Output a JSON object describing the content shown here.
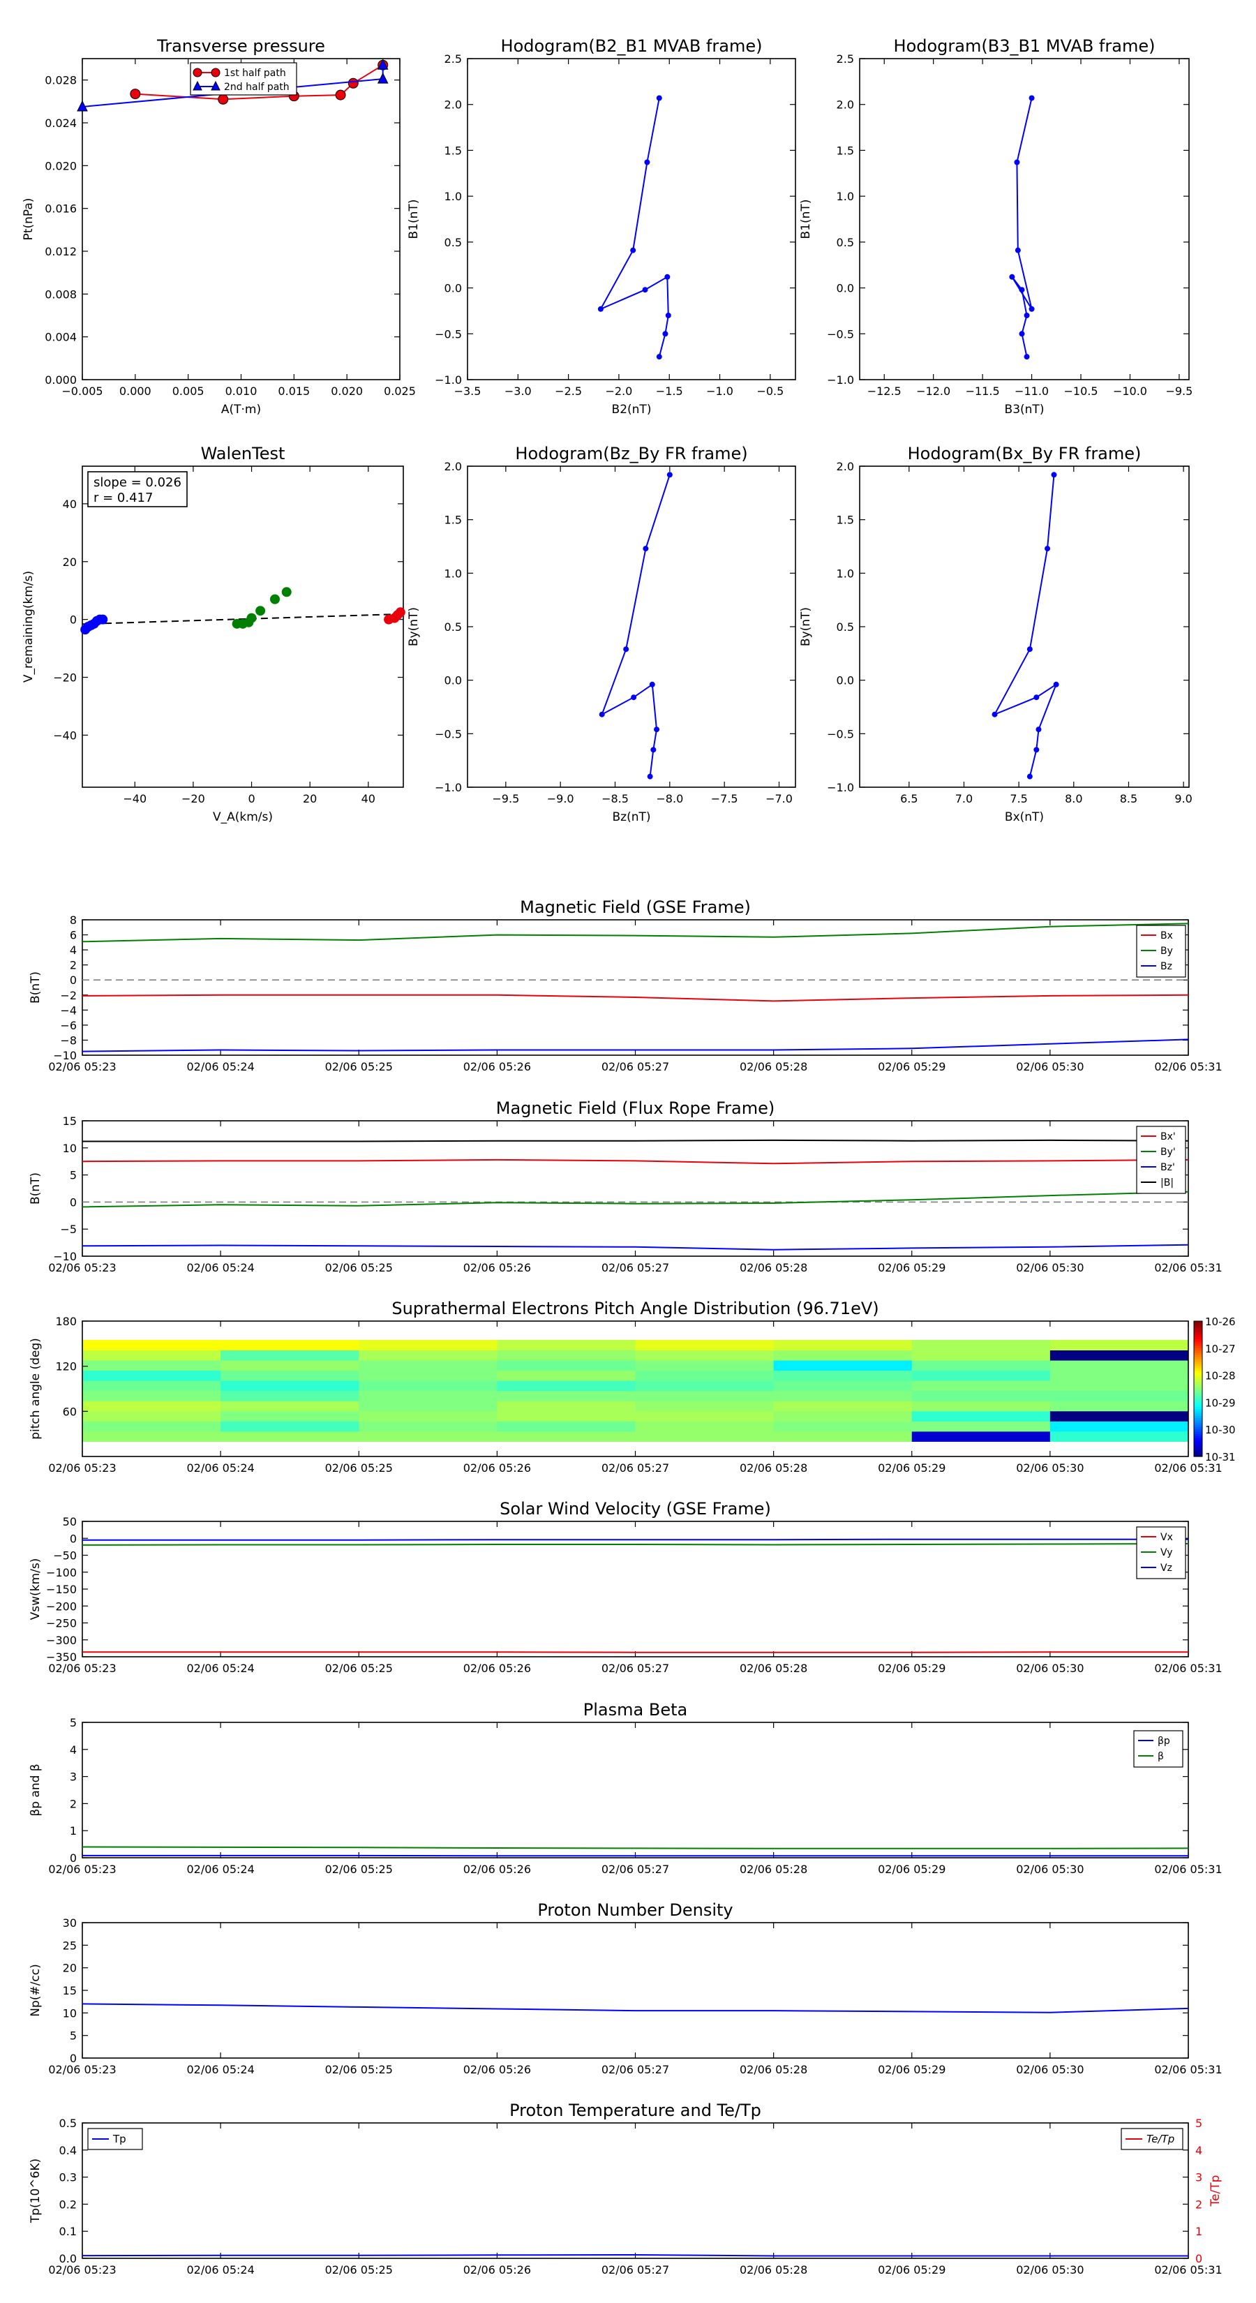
{
  "colors": {
    "red": "#e8000b",
    "green": "#008000",
    "blue": "#0000ff",
    "black": "#000000",
    "gray": "#808080"
  },
  "time_ticks": [
    "02/06 05:23",
    "02/06 05:24",
    "02/06 05:25",
    "02/06 05:26",
    "02/06 05:27",
    "02/06 05:28",
    "02/06 05:29",
    "02/06 05:30",
    "02/06 05:31"
  ],
  "chart_data": [
    {
      "id": "transverse-pressure",
      "type": "line",
      "title": "Transverse pressure",
      "xlabel": "A(T·m)",
      "ylabel": "Pt(nPa)",
      "xlim": [
        -0.005,
        0.025
      ],
      "ylim": [
        0,
        0.03
      ],
      "xticks": [
        -0.005,
        0,
        0.005,
        0.01,
        0.015,
        0.02,
        0.025
      ],
      "xtick_labels": [
        "−0.005",
        "0.000",
        "0.005",
        "0.010",
        "0.015",
        "0.020",
        "0.025"
      ],
      "yticks": [
        0,
        0.004,
        0.008,
        0.012,
        0.016,
        0.02,
        0.024,
        0.028
      ],
      "ytick_labels": [
        "0.000",
        "0.004",
        "0.008",
        "0.012",
        "0.016",
        "0.020",
        "0.024",
        "0.028"
      ],
      "legend": "upper-center",
      "series": [
        {
          "name": "1st half path",
          "color": "#e8000b",
          "marker": "circle",
          "x": [
            0.0,
            0.0083,
            0.015,
            0.0194,
            0.0206,
            0.0234
          ],
          "y": [
            0.0267,
            0.0262,
            0.0265,
            0.0266,
            0.0277,
            0.0294
          ]
        },
        {
          "name": "2nd half path",
          "color": "#0000ff",
          "marker": "triangle",
          "x": [
            -0.005,
            0.0234,
            0.0234
          ],
          "y": [
            0.0255,
            0.0281,
            0.0294
          ]
        }
      ]
    },
    {
      "id": "hodogram-b2-b1",
      "type": "line",
      "title": "Hodogram(B2_B1 MVAB frame)",
      "xlabel": "B2(nT)",
      "ylabel": "B1(nT)",
      "xlim": [
        -3.5,
        -0.25
      ],
      "ylim": [
        -1.0,
        2.5
      ],
      "xticks": [
        -3.5,
        -3.0,
        -2.5,
        -2.0,
        -1.5,
        -1.0,
        -0.5
      ],
      "xtick_labels": [
        "−3.5",
        "−3.0",
        "−2.5",
        "−2.0",
        "−1.5",
        "−1.0",
        "−0.5"
      ],
      "yticks": [
        -1.0,
        -0.5,
        0.0,
        0.5,
        1.0,
        1.5,
        2.0,
        2.5
      ],
      "ytick_labels": [
        "−1.0",
        "−0.5",
        "0.0",
        "0.5",
        "1.0",
        "1.5",
        "2.0",
        "2.5"
      ],
      "series": [
        {
          "color": "#0000ff",
          "x": [
            -1.6,
            -1.72,
            -1.86,
            -2.18,
            -1.74,
            -1.52,
            -1.51,
            -1.54,
            -1.6
          ],
          "y": [
            2.07,
            1.37,
            0.41,
            -0.23,
            -0.02,
            0.12,
            -0.3,
            -0.5,
            -0.75
          ]
        }
      ]
    },
    {
      "id": "hodogram-b3-b1",
      "type": "line",
      "title": "Hodogram(B3_B1 MVAB frame)",
      "xlabel": "B3(nT)",
      "ylabel": "B1(nT)",
      "xlim": [
        -12.75,
        -9.4
      ],
      "ylim": [
        -1.0,
        2.5
      ],
      "xticks": [
        -12.5,
        -12.0,
        -11.5,
        -11.0,
        -10.5,
        -10.0,
        -9.5
      ],
      "xtick_labels": [
        "−12.5",
        "−12.0",
        "−11.5",
        "−11.0",
        "−10.5",
        "−10.0",
        "−9.5"
      ],
      "yticks": [
        -1.0,
        -0.5,
        0.0,
        0.5,
        1.0,
        1.5,
        2.0,
        2.5
      ],
      "ytick_labels": [
        "−1.0",
        "−0.5",
        "0.0",
        "0.5",
        "1.0",
        "1.5",
        "2.0",
        "2.5"
      ],
      "series": [
        {
          "color": "#0000ff",
          "x": [
            -11.0,
            -11.15,
            -11.14,
            -11.0,
            -11.2,
            -11.1,
            -11.05,
            -11.1,
            -11.05
          ],
          "y": [
            2.07,
            1.37,
            0.41,
            -0.23,
            0.12,
            -0.02,
            -0.3,
            -0.5,
            -0.75
          ]
        }
      ]
    },
    {
      "id": "walen-test",
      "type": "scatter",
      "title": "WalenTest",
      "xlabel": "V_A(km/s)",
      "ylabel": "V_remaining(km/s)",
      "xlim": [
        -58,
        52
      ],
      "ylim": [
        -58,
        53
      ],
      "xticks": [
        -40,
        -20,
        0,
        20,
        40
      ],
      "xtick_labels": [
        "−40",
        "−20",
        "0",
        "20",
        "40"
      ],
      "yticks": [
        -40,
        -20,
        0,
        20,
        40
      ],
      "ytick_labels": [
        "−40",
        "−20",
        "0",
        "20",
        "40"
      ],
      "annotations": [
        "slope = 0.026",
        "r = 0.417"
      ],
      "fit_line": {
        "x": [
          -58,
          52
        ],
        "y": [
          -1.6,
          1.9
        ]
      },
      "series": [
        {
          "color": "#0000ff",
          "x": [
            -57,
            -56,
            -55,
            -54,
            -53,
            -52,
            -51
          ],
          "y": [
            -3.5,
            -2.5,
            -2,
            -1.5,
            -0.5,
            0,
            0
          ]
        },
        {
          "color": "#008000",
          "x": [
            -5,
            -3,
            -1,
            0,
            3,
            8,
            12
          ],
          "y": [
            -1.5,
            -1.5,
            -1,
            0.5,
            3,
            7,
            9.5
          ]
        },
        {
          "color": "#e8000b",
          "x": [
            47,
            49,
            50,
            51
          ],
          "y": [
            0,
            0.5,
            1.5,
            2.5
          ]
        }
      ]
    },
    {
      "id": "hodogram-bz-by",
      "type": "line",
      "title": "Hodogram(Bz_By FR frame)",
      "xlabel": "Bz(nT)",
      "ylabel": "By(nT)",
      "xlim": [
        -9.85,
        -6.85
      ],
      "ylim": [
        -1.0,
        2.0
      ],
      "xticks": [
        -9.5,
        -9.0,
        -8.5,
        -8.0,
        -7.5,
        -7.0
      ],
      "xtick_labels": [
        "−9.5",
        "−9.0",
        "−8.5",
        "−8.0",
        "−7.5",
        "−7.0"
      ],
      "yticks": [
        -1.0,
        -0.5,
        0.0,
        0.5,
        1.0,
        1.5,
        2.0
      ],
      "ytick_labels": [
        "−1.0",
        "−0.5",
        "0.0",
        "0.5",
        "1.0",
        "1.5",
        "2.0"
      ],
      "series": [
        {
          "color": "#0000ff",
          "x": [
            -8.0,
            -8.22,
            -8.4,
            -8.62,
            -8.33,
            -8.16,
            -8.12,
            -8.15,
            -8.18
          ],
          "y": [
            1.92,
            1.23,
            0.29,
            -0.32,
            -0.16,
            -0.04,
            -0.46,
            -0.65,
            -0.9
          ]
        }
      ]
    },
    {
      "id": "hodogram-bx-by",
      "type": "line",
      "title": "Hodogram(Bx_By FR frame)",
      "xlabel": "Bx(nT)",
      "ylabel": "By(nT)",
      "xlim": [
        6.05,
        9.05
      ],
      "ylim": [
        -1.0,
        2.0
      ],
      "xticks": [
        6.5,
        7.0,
        7.5,
        8.0,
        8.5,
        9.0
      ],
      "xtick_labels": [
        "6.5",
        "7.0",
        "7.5",
        "8.0",
        "8.5",
        "9.0"
      ],
      "yticks": [
        -1.0,
        -0.5,
        0.0,
        0.5,
        1.0,
        1.5,
        2.0
      ],
      "ytick_labels": [
        "−1.0",
        "−0.5",
        "0.0",
        "0.5",
        "1.0",
        "1.5",
        "2.0"
      ],
      "series": [
        {
          "color": "#0000ff",
          "x": [
            7.82,
            7.76,
            7.6,
            7.28,
            7.66,
            7.84,
            7.68,
            7.66,
            7.6
          ],
          "y": [
            1.92,
            1.23,
            0.29,
            -0.32,
            -0.16,
            -0.04,
            -0.46,
            -0.65,
            -0.9
          ]
        }
      ]
    },
    {
      "id": "mag-gse",
      "type": "line",
      "title": "Magnetic Field (GSE Frame)",
      "ylabel": "B(nT)",
      "x": [
        0,
        1,
        2,
        3,
        4,
        5,
        6,
        7,
        8
      ],
      "xlim": [
        0,
        8
      ],
      "ylim": [
        -10,
        8
      ],
      "yticks": [
        -10,
        -8,
        -6,
        -4,
        -2,
        0,
        2,
        4,
        6,
        8
      ],
      "ytick_labels": [
        "−10",
        "−8",
        "−6",
        "−4",
        "−2",
        "0",
        "2",
        "4",
        "6",
        "8"
      ],
      "zero_line": true,
      "legend": "right",
      "series": [
        {
          "name": "Bx",
          "color": "#e8000b",
          "values": [
            -2.1,
            -2.0,
            -2.0,
            -2.0,
            -2.3,
            -2.8,
            -2.4,
            -2.1,
            -2.0
          ]
        },
        {
          "name": "By",
          "color": "#008000",
          "values": [
            5.1,
            5.5,
            5.3,
            6.0,
            5.9,
            5.7,
            6.2,
            7.1,
            7.5
          ]
        },
        {
          "name": "Bz",
          "color": "#0000ff",
          "values": [
            -9.5,
            -9.3,
            -9.4,
            -9.3,
            -9.3,
            -9.3,
            -9.1,
            -8.5,
            -7.9
          ]
        }
      ]
    },
    {
      "id": "mag-fr",
      "type": "line",
      "title": "Magnetic Field (Flux Rope Frame)",
      "ylabel": "B(nT)",
      "x": [
        0,
        1,
        2,
        3,
        4,
        5,
        6,
        7,
        8
      ],
      "xlim": [
        0,
        8
      ],
      "ylim": [
        -10,
        15
      ],
      "yticks": [
        -10,
        -5,
        0,
        5,
        10,
        15
      ],
      "ytick_labels": [
        "−10",
        "−5",
        "0",
        "5",
        "10",
        "15"
      ],
      "zero_line": true,
      "legend": "right",
      "series": [
        {
          "name": "Bx'",
          "color": "#e8000b",
          "values": [
            7.5,
            7.6,
            7.6,
            7.8,
            7.6,
            7.1,
            7.5,
            7.6,
            7.8
          ]
        },
        {
          "name": "By'",
          "color": "#008000",
          "values": [
            -0.9,
            -0.5,
            -0.7,
            -0.1,
            -0.3,
            -0.2,
            0.4,
            1.2,
            1.9
          ]
        },
        {
          "name": "Bz'",
          "color": "#0000ff",
          "values": [
            -8.1,
            -8.0,
            -8.1,
            -8.2,
            -8.3,
            -8.8,
            -8.5,
            -8.3,
            -7.9
          ]
        },
        {
          "name": "|B|",
          "color": "#000000",
          "values": [
            11.2,
            11.2,
            11.2,
            11.3,
            11.3,
            11.4,
            11.3,
            11.4,
            11.3
          ]
        }
      ]
    },
    {
      "id": "pad",
      "type": "heatmap",
      "title": "Suprathermal Electrons Pitch Angle Distribution (96.71eV)",
      "ylabel": "pitch angle (deg)",
      "xlim": [
        0,
        8
      ],
      "ylim": [
        0,
        180
      ],
      "yticks": [
        60,
        120,
        180
      ],
      "ytick_labels": [
        "60",
        "120",
        "180"
      ],
      "colorbar_labels": [
        "10-26",
        "10-27",
        "10-28",
        "10-29",
        "10-30",
        "10-31"
      ],
      "colorbar_min": -31,
      "colorbar_max": -26,
      "rows": [
        [
          -28.4,
          -28.4,
          -28.4,
          -28.4,
          -28.4,
          -28.4,
          -30.6,
          -28.9
        ],
        [
          -28.5,
          -28.8,
          -28.5,
          -28.6,
          -28.4,
          -28.5,
          -28.5,
          -29.2
        ],
        [
          -28.3,
          -28.5,
          -28.4,
          -28.3,
          -28.3,
          -28.4,
          -28.9,
          -31.0
        ],
        [
          -28.2,
          -28.3,
          -28.5,
          -28.3,
          -28.4,
          -28.3,
          -28.4,
          -28.5
        ],
        [
          -28.5,
          -28.7,
          -28.5,
          -28.5,
          -28.5,
          -28.5,
          -28.6,
          -28.6
        ],
        [
          -28.6,
          -28.9,
          -28.6,
          -28.8,
          -28.7,
          -28.6,
          -28.5,
          -28.5
        ],
        [
          -28.9,
          -28.6,
          -28.5,
          -28.4,
          -28.6,
          -28.7,
          -28.8,
          -28.5
        ],
        [
          -28.5,
          -28.4,
          -28.5,
          -28.6,
          -28.5,
          -29.2,
          -28.6,
          -28.5
        ],
        [
          -28.2,
          -28.7,
          -28.3,
          -28.4,
          -28.3,
          -28.4,
          -28.3,
          -31.0
        ],
        [
          -27.9,
          -27.9,
          -28.0,
          -28.2,
          -28.0,
          -28.1,
          -28.3,
          -28.2
        ]
      ]
    },
    {
      "id": "vsw",
      "type": "line",
      "title": "Solar Wind Velocity (GSE Frame)",
      "ylabel": "Vsw(km/s)",
      "x": [
        0,
        1,
        2,
        3,
        4,
        5,
        6,
        7,
        8
      ],
      "xlim": [
        0,
        8
      ],
      "ylim": [
        -350,
        50
      ],
      "yticks": [
        -350,
        -300,
        -250,
        -200,
        -150,
        -100,
        -50,
        0,
        50
      ],
      "ytick_labels": [
        "−350",
        "−300",
        "−250",
        "−200",
        "−150",
        "−100",
        "−50",
        "0",
        "50"
      ],
      "legend": "right",
      "series": [
        {
          "name": "Vx",
          "color": "#e8000b",
          "values": [
            -336,
            -336,
            -336,
            -336,
            -337,
            -337,
            -337,
            -336,
            -336
          ]
        },
        {
          "name": "Vy",
          "color": "#008000",
          "values": [
            -20,
            -19,
            -19,
            -18,
            -18,
            -19,
            -18,
            -17,
            -16
          ]
        },
        {
          "name": "Vz",
          "color": "#0000ff",
          "values": [
            -5,
            -5,
            -5,
            -4,
            -4,
            -4,
            -3,
            -3,
            -3
          ]
        }
      ]
    },
    {
      "id": "beta",
      "type": "line",
      "title": "Plasma Beta",
      "ylabel": "βp and β",
      "x": [
        0,
        1,
        2,
        3,
        4,
        5,
        6,
        7,
        8
      ],
      "xlim": [
        0,
        8
      ],
      "ylim": [
        0,
        5
      ],
      "yticks": [
        0,
        1,
        2,
        3,
        4,
        5
      ],
      "ytick_labels": [
        "0",
        "1",
        "2",
        "3",
        "4",
        "5"
      ],
      "legend": "upper-right",
      "series": [
        {
          "name": "βp",
          "color": "#0000ff",
          "values": [
            0.08,
            0.08,
            0.08,
            0.07,
            0.07,
            0.07,
            0.07,
            0.07,
            0.07
          ]
        },
        {
          "name": "β",
          "color": "#008000",
          "values": [
            0.4,
            0.39,
            0.38,
            0.36,
            0.35,
            0.34,
            0.34,
            0.34,
            0.35
          ]
        }
      ]
    },
    {
      "id": "np",
      "type": "line",
      "title": "Proton Number Density",
      "ylabel": "Np(#/cc)",
      "x": [
        0,
        1,
        2,
        3,
        4,
        5,
        6,
        7,
        8
      ],
      "xlim": [
        0,
        8
      ],
      "ylim": [
        0,
        30
      ],
      "yticks": [
        0,
        5,
        10,
        15,
        20,
        25,
        30
      ],
      "ytick_labels": [
        "0",
        "5",
        "10",
        "15",
        "20",
        "25",
        "30"
      ],
      "series": [
        {
          "color": "#0000ff",
          "values": [
            12.0,
            11.7,
            11.3,
            10.9,
            10.5,
            10.5,
            10.3,
            10.1,
            11.0
          ]
        }
      ]
    },
    {
      "id": "tp",
      "type": "line",
      "title": "Proton Temperature and Te/Tp",
      "ylabel": "Tp(10^6K)",
      "ylabel_right": "Te/Tp",
      "x": [
        0,
        1,
        2,
        3,
        4,
        5,
        6,
        7,
        8
      ],
      "xlim": [
        0,
        8
      ],
      "ylim": [
        0,
        0.5
      ],
      "ylim_right": [
        0,
        5
      ],
      "yticks": [
        0,
        0.1,
        0.2,
        0.3,
        0.4,
        0.5
      ],
      "ytick_labels": [
        "0.0",
        "0.1",
        "0.2",
        "0.3",
        "0.4",
        "0.5"
      ],
      "yticks_right": [
        0,
        1,
        2,
        3,
        4,
        5
      ],
      "ytick_labels_right": [
        "0",
        "1",
        "2",
        "3",
        "4",
        "5"
      ],
      "series": [
        {
          "name": "Tp",
          "color": "#0000ff",
          "values": [
            0.01,
            0.011,
            0.011,
            0.012,
            0.013,
            0.009,
            0.009,
            0.009,
            0.009
          ]
        }
      ],
      "right_series": [
        {
          "name": "Te/Tp",
          "color": "#e8000b",
          "values": []
        }
      ]
    }
  ]
}
